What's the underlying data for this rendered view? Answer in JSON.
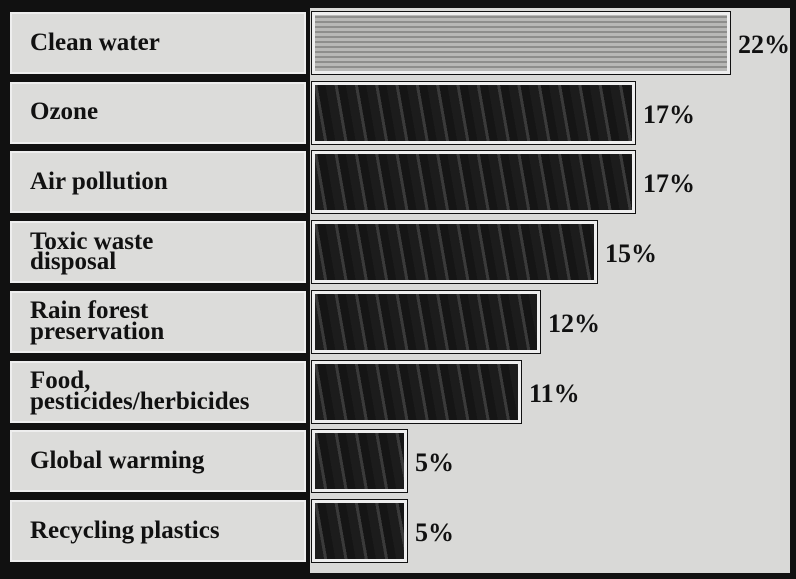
{
  "chart_data": {
    "type": "bar",
    "categories": [
      "Clean water",
      "Ozone",
      "Air pollution",
      "Toxic waste\ndisposal",
      "Rain forest\npreservation",
      "Food,\npesticides/herbicides",
      "Global warming",
      "Recycling plastics"
    ],
    "values": [
      22,
      17,
      17,
      15,
      12,
      11,
      5,
      5
    ],
    "value_labels": [
      "22%",
      "17%",
      "17%",
      "15%",
      "12%",
      "11%",
      "5%",
      "5%"
    ]
  }
}
